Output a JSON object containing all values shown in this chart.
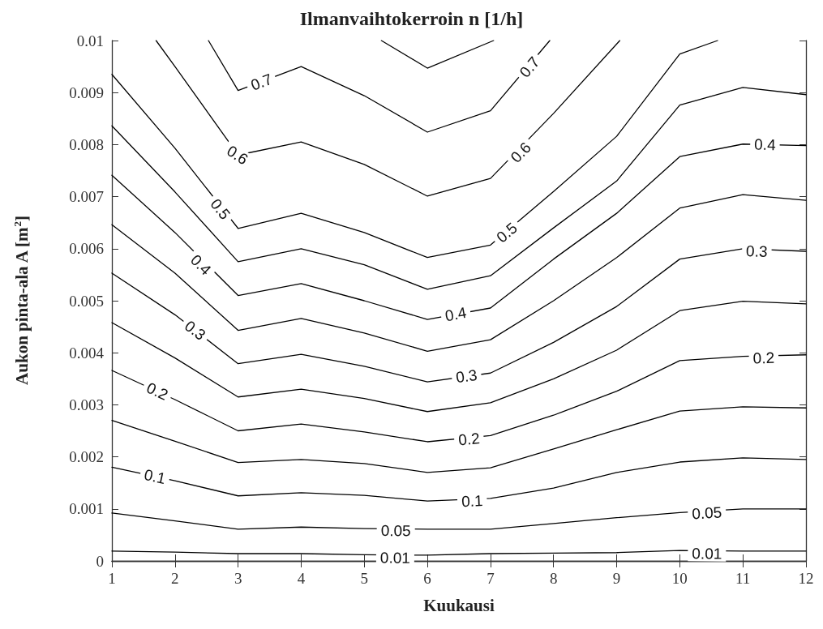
{
  "chart_data": {
    "type": "line",
    "title": "Ilmanvaihtokerroin n [1/h]",
    "xlabel": "Kuukausi",
    "ylabel": "Aukon pinta-ala A [m$^{2}$]",
    "x": [
      1,
      2,
      3,
      4,
      5,
      6,
      7,
      8,
      9,
      10,
      11,
      12
    ],
    "xlim": [
      1,
      12
    ],
    "xticks": [
      1,
      2,
      3,
      4,
      5,
      6,
      7,
      8,
      9,
      10,
      11,
      12
    ],
    "ylim": [
      0,
      0.01
    ],
    "yticks": [
      0,
      0.001,
      0.002,
      0.003,
      0.004,
      0.005,
      0.006,
      0.007,
      0.008,
      0.009,
      0.01
    ],
    "grid": false,
    "marker": "none",
    "line_style": "solid",
    "series": [
      {
        "color": "#000000",
        "x": [
          5.27,
          6,
          7.05
        ],
        "values": [
          0.01,
          0.00947,
          0.01
        ]
      },
      {
        "color": "#000000",
        "x": [
          2.53,
          3,
          4,
          5,
          6,
          7,
          7.94
        ],
        "values": [
          0.01,
          0.00904,
          0.0095,
          0.00894,
          0.00824,
          0.00865,
          0.01
        ]
      },
      {
        "color": "#000000",
        "x": [
          1.7,
          2,
          3,
          4,
          5,
          6,
          7,
          8,
          9.05
        ],
        "values": [
          0.01,
          0.0095,
          0.0078,
          0.00805,
          0.00762,
          0.00701,
          0.00735,
          0.0086,
          0.01
        ]
      },
      {
        "color": "#000000",
        "x": [
          1,
          2,
          3,
          4,
          5,
          6,
          7,
          8,
          9,
          10,
          10.6
        ],
        "values": [
          0.00935,
          0.00793,
          0.00639,
          0.00668,
          0.00631,
          0.00583,
          0.00607,
          0.0071,
          0.00816,
          0.00974,
          0.01
        ]
      },
      {
        "color": "#000000",
        "values": [
          0.00836,
          0.00709,
          0.00575,
          0.006,
          0.00569,
          0.00522,
          0.00548,
          0.0064,
          0.0073,
          0.00876,
          0.0091,
          0.00896
        ]
      },
      {
        "color": "#000000",
        "values": [
          0.00741,
          0.00631,
          0.0051,
          0.00533,
          0.005,
          0.00464,
          0.00486,
          0.0058,
          0.00668,
          0.00777,
          0.00801,
          0.00798
        ]
      },
      {
        "color": "#000000",
        "values": [
          0.00646,
          0.00553,
          0.00443,
          0.00466,
          0.00438,
          0.00403,
          0.00425,
          0.005,
          0.00583,
          0.00678,
          0.00704,
          0.00693
        ]
      },
      {
        "color": "#000000",
        "values": [
          0.00553,
          0.00473,
          0.00379,
          0.00397,
          0.00374,
          0.00344,
          0.00361,
          0.0042,
          0.00489,
          0.0058,
          0.006,
          0.00595
        ]
      },
      {
        "color": "#000000",
        "values": [
          0.00458,
          0.0039,
          0.00315,
          0.0033,
          0.00312,
          0.00287,
          0.00304,
          0.0035,
          0.00405,
          0.00481,
          0.00499,
          0.00494
        ]
      },
      {
        "color": "#000000",
        "values": [
          0.00366,
          0.0031,
          0.0025,
          0.00263,
          0.00248,
          0.00229,
          0.00241,
          0.0028,
          0.00326,
          0.00385,
          0.00393,
          0.00396
        ]
      },
      {
        "color": "#000000",
        "values": [
          0.0027,
          0.0023,
          0.00189,
          0.00195,
          0.00187,
          0.0017,
          0.00179,
          0.00215,
          0.00252,
          0.00288,
          0.00296,
          0.00294
        ]
      },
      {
        "color": "#000000",
        "values": [
          0.0018,
          0.00154,
          0.00125,
          0.00131,
          0.00126,
          0.00115,
          0.0012,
          0.0014,
          0.0017,
          0.0019,
          0.00198,
          0.00195
        ]
      },
      {
        "color": "#000000",
        "values": [
          0.00092,
          0.00077,
          0.00061,
          0.00065,
          0.00062,
          0.00061,
          0.00061,
          0.00072,
          0.00083,
          0.00093,
          0.001,
          0.001
        ]
      },
      {
        "color": "#000000",
        "values": [
          0.00019,
          0.00017,
          0.00014,
          0.00014,
          0.00012,
          0.00011,
          0.00014,
          0.00015,
          0.00016,
          0.0002,
          0.00019,
          0.00019
        ]
      }
    ],
    "annotations": [
      {
        "text": "0.7",
        "x": 3.37,
        "y": 0.0092
      },
      {
        "text": "0.6",
        "x": 2.99,
        "y": 0.0078
      },
      {
        "text": "0.5",
        "x": 2.72,
        "y": 0.00676
      },
      {
        "text": "0.4",
        "x": 2.41,
        "y": 0.00569
      },
      {
        "text": "0.3",
        "x": 2.32,
        "y": 0.00443
      },
      {
        "text": "0.2",
        "x": 1.72,
        "y": 0.00326
      },
      {
        "text": "0.1",
        "x": 1.68,
        "y": 0.00162
      },
      {
        "text": "0.7",
        "x": 7.62,
        "y": 0.00949
      },
      {
        "text": "0.6",
        "x": 7.48,
        "y": 0.00785
      },
      {
        "text": "0.5",
        "x": 7.26,
        "y": 0.00631
      },
      {
        "text": "0.4",
        "x": 6.45,
        "y": 0.00474
      },
      {
        "text": "0.3",
        "x": 6.62,
        "y": 0.00355
      },
      {
        "text": "0.2",
        "x": 6.66,
        "y": 0.00234
      },
      {
        "text": "0.1",
        "x": 6.71,
        "y": 0.00115
      },
      {
        "text": "0.05",
        "x": 5.5,
        "y": 0.00058
      },
      {
        "text": "0.01",
        "x": 5.49,
        "y": 6e-05
      },
      {
        "text": "0.4",
        "x": 11.35,
        "y": 0.008
      },
      {
        "text": "0.3",
        "x": 11.22,
        "y": 0.00595
      },
      {
        "text": "0.2",
        "x": 11.33,
        "y": 0.0039
      },
      {
        "text": "0.05",
        "x": 10.43,
        "y": 0.00092
      },
      {
        "text": "0.01",
        "x": 10.43,
        "y": 0.00014
      }
    ]
  }
}
